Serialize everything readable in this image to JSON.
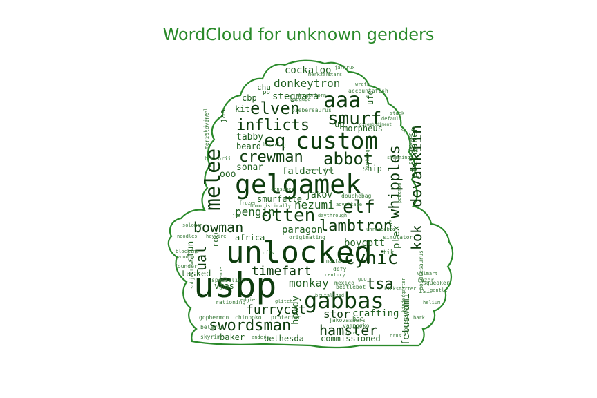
{
  "title": "WordCloud for unknown genders",
  "colors": {
    "outline": "#2a8a2a",
    "title": "#2a8a2a",
    "dark": "#0d3b0d",
    "mid": "#1f5f1f",
    "light": "#3a7a3a"
  },
  "words": [
    {
      "text": "unlocked"
    },
    {
      "text": "usbp"
    },
    {
      "text": "gelgamek"
    },
    {
      "text": "custom"
    },
    {
      "text": "aaa"
    },
    {
      "text": "gabbas"
    },
    {
      "text": "smurf"
    },
    {
      "text": "eq"
    },
    {
      "text": "elven"
    },
    {
      "text": "melee"
    },
    {
      "text": "inflicts"
    },
    {
      "text": "crewman"
    },
    {
      "text": "abbot"
    },
    {
      "text": "otten"
    },
    {
      "text": "elf"
    },
    {
      "text": "lambtron"
    },
    {
      "text": "whipples"
    },
    {
      "text": "swordsman"
    },
    {
      "text": "hamster"
    },
    {
      "text": "cynic"
    },
    {
      "text": "bowman"
    },
    {
      "text": "furrycat"
    },
    {
      "text": "timefart"
    },
    {
      "text": "dovahkiin"
    },
    {
      "text": "kok"
    },
    {
      "text": "ual"
    },
    {
      "text": "tsa"
    },
    {
      "text": "monkay"
    },
    {
      "text": "stor"
    },
    {
      "text": "crafting"
    },
    {
      "text": "nezumi"
    },
    {
      "text": "pengin"
    },
    {
      "text": "boycott"
    },
    {
      "text": "paragon"
    },
    {
      "text": "donkeytron"
    },
    {
      "text": "stegmata"
    },
    {
      "text": "cockatoo"
    },
    {
      "text": "fatdactyl"
    },
    {
      "text": "sonar"
    },
    {
      "text": "tabby"
    },
    {
      "text": "beard"
    },
    {
      "text": "smurfette"
    },
    {
      "text": "jakov"
    },
    {
      "text": "ooo"
    },
    {
      "text": "roo"
    },
    {
      "text": "vmas"
    },
    {
      "text": "tasked"
    },
    {
      "text": "stun"
    },
    {
      "text": "africa"
    },
    {
      "text": "baker"
    },
    {
      "text": "bethesda"
    },
    {
      "text": "commissioned"
    },
    {
      "text": "fetuswami"
    },
    {
      "text": "howdy"
    },
    {
      "text": "pterdaken"
    },
    {
      "text": "morpheus"
    },
    {
      "text": "plex"
    },
    {
      "text": "kit"
    },
    {
      "text": "cbp"
    },
    {
      "text": "chu"
    },
    {
      "text": "ship"
    },
    {
      "text": "up"
    },
    {
      "text": "ufo"
    },
    {
      "text": "gophermon"
    },
    {
      "text": "chinpoko"
    },
    {
      "text": "mexico"
    },
    {
      "text": "specialist"
    },
    {
      "text": "jakovasaurs"
    },
    {
      "text": "simulator"
    },
    {
      "text": "originating"
    },
    {
      "text": "beetlebot"
    },
    {
      "text": "accountafish"
    },
    {
      "text": "biebersaurus"
    },
    {
      "text": "douchebag"
    },
    {
      "text": "brocorii"
    },
    {
      "text": "teriblovine"
    },
    {
      "text": "crossbowman"
    },
    {
      "text": "poodlesaurus"
    },
    {
      "text": "squeaker"
    },
    {
      "text": "dragonborn"
    },
    {
      "text": "vamporko"
    },
    {
      "text": "founder"
    },
    {
      "text": "belarus"
    },
    {
      "text": "skyrim"
    },
    {
      "text": "anders"
    },
    {
      "text": "protector"
    },
    {
      "text": "rationing"
    },
    {
      "text": "speedster"
    },
    {
      "text": "razor"
    },
    {
      "text": "isi"
    },
    {
      "text": "tik"
    },
    {
      "text": "defy"
    },
    {
      "text": "hoe"
    },
    {
      "text": "zoo"
    },
    {
      "text": "default"
    },
    {
      "text": "stack"
    },
    {
      "text": "spine"
    },
    {
      "text": "consumer"
    },
    {
      "text": "advantage"
    },
    {
      "text": "humoristically"
    },
    {
      "text": "daythrough"
    },
    {
      "text": "pokemon"
    },
    {
      "text": "uae"
    },
    {
      "text": "haywire"
    },
    {
      "text": "solomon"
    },
    {
      "text": "blocking"
    },
    {
      "text": "edgier"
    },
    {
      "text": "gentle"
    },
    {
      "text": "walmart"
    },
    {
      "text": "kickstarter"
    },
    {
      "text": "brutalized"
    },
    {
      "text": "glitch"
    },
    {
      "text": "hucking"
    },
    {
      "text": "bark"
    },
    {
      "text": "goo"
    },
    {
      "text": "unreadable"
    },
    {
      "text": "jarkrux"
    },
    {
      "text": "stanning"
    },
    {
      "text": "merkzars"
    },
    {
      "text": "stars"
    },
    {
      "text": "baggage"
    },
    {
      "text": "lowering"
    },
    {
      "text": "additional"
    },
    {
      "text": "samaritan"
    },
    {
      "text": "frozen"
    },
    {
      "text": "jud"
    },
    {
      "text": "offs"
    },
    {
      "text": "marta"
    },
    {
      "text": "helium"
    },
    {
      "text": "subjective"
    },
    {
      "text": "cheyenne"
    },
    {
      "text": "kindergarten"
    },
    {
      "text": "humus"
    },
    {
      "text": "crus"
    },
    {
      "text": "voodoo"
    },
    {
      "text": "noodles"
    },
    {
      "text": "pp"
    },
    {
      "text": "jaa"
    },
    {
      "text": "ds"
    },
    {
      "text": "wrath"
    },
    {
      "text": "century"
    },
    {
      "text": "disembodiment"
    }
  ]
}
